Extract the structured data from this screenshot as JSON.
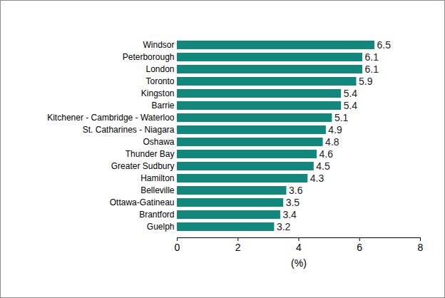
{
  "chart_data": {
    "type": "bar",
    "orientation": "horizontal",
    "categories": [
      "Windsor",
      "Peterborough",
      "London",
      "Toronto",
      "Kingston",
      "Barrie",
      "Kitchener - Cambridge - Waterloo",
      "St. Catharines - Niagara",
      "Oshawa",
      "Thunder Bay",
      "Greater Sudbury",
      "Hamilton",
      "Belleville",
      "Ottawa-Gatineau",
      "Brantford",
      "Guelph"
    ],
    "values": [
      6.5,
      6.1,
      6.1,
      5.9,
      5.4,
      5.4,
      5.1,
      4.9,
      4.8,
      4.6,
      4.5,
      4.3,
      3.6,
      3.5,
      3.4,
      3.2
    ],
    "color": "#12877b",
    "xlabel": "(%)",
    "xlim": [
      0,
      8
    ],
    "xticks": [
      0,
      2,
      4,
      6,
      8
    ],
    "grid": false,
    "data_labels": true
  }
}
